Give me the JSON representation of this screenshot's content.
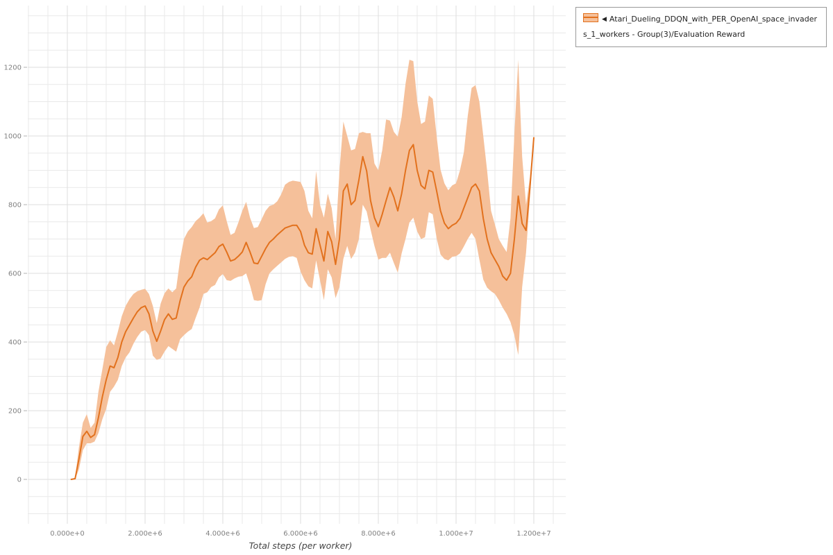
{
  "page": {
    "background": "#ffffff"
  },
  "legend": {
    "collapse_icon": "◀",
    "label": "Atari_Dueling_DDQN_with_PER_OpenAI_space_invaders_1_workers - Group(3)/Evaluation Reward"
  },
  "chart_data": {
    "type": "line",
    "title": "",
    "xlabel": "Total steps (per worker)",
    "ylabel": "",
    "x_unit": "steps",
    "x_range_millions": [
      0,
      12.8
    ],
    "ylim": [
      -130,
      1380
    ],
    "grid": {
      "on": true,
      "minor_x_millions": 0.5,
      "minor_y": 50,
      "color": "#e9e9e9",
      "major_color": "#dedede"
    },
    "legend_position": "top-right-outside",
    "x_tick_values_millions": [
      0,
      2,
      4,
      6,
      8,
      10,
      12
    ],
    "x_tick_labels": [
      "0.000e+0",
      "2.000e+6",
      "4.000e+6",
      "6.000e+6",
      "8.000e+6",
      "1.000e+7",
      "1.200e+7"
    ],
    "y_tick_values": [
      0,
      200,
      400,
      600,
      800,
      1000,
      1200
    ],
    "y_tick_labels": [
      "0",
      "200",
      "400",
      "600",
      "800",
      "1000",
      "1200"
    ],
    "series": [
      {
        "name": "Atari_Dueling_DDQN_with_PER_OpenAI_space_invaders_1_workers - Group(3)/Evaluation Reward",
        "color": "#e2711d",
        "band_color": "#f5c09a",
        "x_millions": [
          0.1,
          0.2,
          0.3,
          0.4,
          0.5,
          0.6,
          0.7,
          0.8,
          0.9,
          1.0,
          1.1,
          1.2,
          1.3,
          1.4,
          1.5,
          1.6,
          1.7,
          1.8,
          1.9,
          2.0,
          2.1,
          2.2,
          2.3,
          2.4,
          2.5,
          2.6,
          2.7,
          2.8,
          2.9,
          3.0,
          3.1,
          3.2,
          3.3,
          3.4,
          3.5,
          3.6,
          3.7,
          3.8,
          3.9,
          4.0,
          4.1,
          4.2,
          4.3,
          4.4,
          4.5,
          4.6,
          4.7,
          4.8,
          4.9,
          5.0,
          5.1,
          5.2,
          5.3,
          5.4,
          5.5,
          5.6,
          5.7,
          5.8,
          5.9,
          6.0,
          6.1,
          6.2,
          6.3,
          6.4,
          6.5,
          6.6,
          6.7,
          6.8,
          6.9,
          7.0,
          7.1,
          7.2,
          7.3,
          7.4,
          7.5,
          7.6,
          7.7,
          7.8,
          7.9,
          8.0,
          8.1,
          8.2,
          8.3,
          8.4,
          8.5,
          8.6,
          8.7,
          8.8,
          8.9,
          9.0,
          9.1,
          9.2,
          9.3,
          9.4,
          9.5,
          9.6,
          9.7,
          9.8,
          9.9,
          10.0,
          10.1,
          10.2,
          10.3,
          10.4,
          10.5,
          10.6,
          10.7,
          10.8,
          10.9,
          11.0,
          11.1,
          11.2,
          11.3,
          11.4,
          11.5,
          11.6,
          11.7,
          11.8,
          11.9,
          12.0
        ],
        "mean": [
          0,
          2,
          60,
          125,
          140,
          122,
          130,
          180,
          240,
          290,
          330,
          325,
          355,
          400,
          430,
          450,
          470,
          488,
          500,
          505,
          482,
          432,
          402,
          432,
          465,
          482,
          466,
          470,
          520,
          560,
          578,
          590,
          618,
          638,
          645,
          640,
          650,
          660,
          678,
          685,
          662,
          636,
          640,
          650,
          662,
          690,
          662,
          630,
          628,
          650,
          672,
          690,
          700,
          712,
          722,
          732,
          736,
          740,
          740,
          722,
          682,
          660,
          656,
          730,
          682,
          636,
          722,
          692,
          626,
          700,
          840,
          860,
          800,
          812,
          872,
          940,
          898,
          812,
          762,
          736,
          772,
          812,
          850,
          822,
          782,
          832,
          900,
          958,
          975,
          900,
          856,
          846,
          900,
          895,
          840,
          782,
          746,
          730,
          740,
          746,
          760,
          790,
          820,
          850,
          860,
          840,
          760,
          700,
          660,
          640,
          620,
          592,
          580,
          600,
          700,
          825,
          745,
          725,
          850,
          995
        ],
        "band_low": [
          0,
          0,
          30,
          85,
          105,
          105,
          110,
          135,
          175,
          205,
          255,
          270,
          290,
          330,
          355,
          370,
          395,
          415,
          430,
          435,
          420,
          360,
          348,
          352,
          372,
          388,
          380,
          372,
          408,
          420,
          430,
          438,
          470,
          500,
          540,
          545,
          560,
          566,
          588,
          598,
          580,
          578,
          585,
          590,
          592,
          600,
          565,
          522,
          520,
          522,
          568,
          600,
          612,
          622,
          632,
          642,
          648,
          650,
          645,
          605,
          580,
          562,
          556,
          638,
          580,
          522,
          612,
          588,
          528,
          560,
          642,
          680,
          642,
          660,
          700,
          800,
          780,
          728,
          680,
          640,
          645,
          645,
          660,
          630,
          602,
          658,
          700,
          748,
          762,
          722,
          700,
          705,
          778,
          772,
          702,
          655,
          642,
          638,
          648,
          650,
          658,
          678,
          700,
          718,
          700,
          640,
          582,
          558,
          548,
          540,
          522,
          500,
          482,
          458,
          420,
          362,
          560,
          660,
          820,
          995
        ],
        "band_high": [
          0,
          5,
          95,
          165,
          190,
          150,
          165,
          255,
          320,
          385,
          405,
          390,
          430,
          475,
          505,
          525,
          540,
          548,
          552,
          555,
          540,
          505,
          455,
          512,
          542,
          556,
          545,
          556,
          640,
          700,
          722,
          735,
          752,
          762,
          775,
          748,
          752,
          760,
          786,
          798,
          752,
          712,
          718,
          748,
          782,
          808,
          762,
          732,
          735,
          758,
          782,
          796,
          800,
          810,
          830,
          858,
          866,
          870,
          868,
          866,
          840,
          782,
          760,
          898,
          800,
          762,
          832,
          790,
          700,
          898,
          1042,
          1000,
          958,
          962,
          1008,
          1012,
          1008,
          1008,
          920,
          900,
          958,
          1048,
          1045,
          1012,
          998,
          1055,
          1152,
          1222,
          1218,
          1102,
          1035,
          1042,
          1118,
          1108,
          1000,
          902,
          862,
          842,
          856,
          862,
          900,
          952,
          1058,
          1140,
          1148,
          1100,
          1000,
          898,
          782,
          742,
          700,
          680,
          662,
          760,
          1005,
          1222,
          940,
          800,
          880,
          995
        ]
      }
    ]
  }
}
